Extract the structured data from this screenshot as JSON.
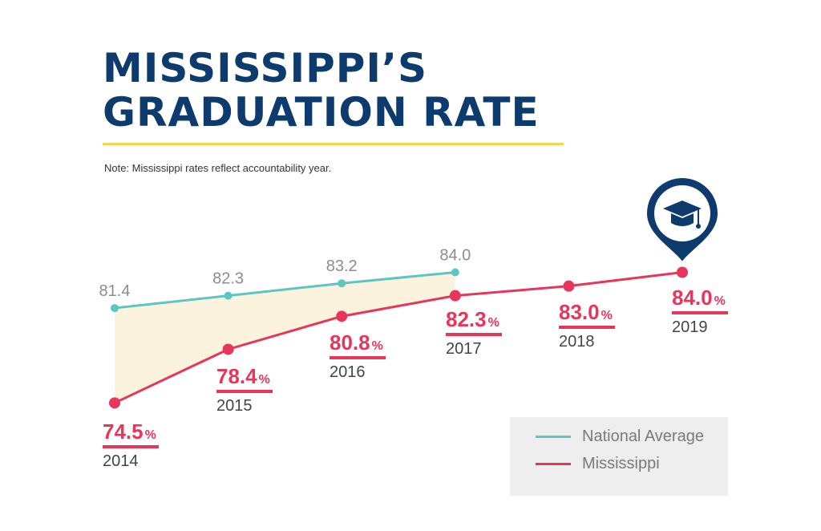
{
  "title_lines": [
    "MISSISSIPPI’S",
    "GRADUATION RATE"
  ],
  "note": "Note: Mississippi rates reflect accountability year.",
  "icon": "graduation-cap-map-pin-icon",
  "colors": {
    "title": "#0d3b6e",
    "rule": "#f4d54b",
    "national": "#5ec6c0",
    "mississippi": "#e8365a",
    "gap_fill": "#fcf3de",
    "national_label": "#8c8c8c",
    "year_label": "#444444",
    "legend_bg": "#eeeeee"
  },
  "legend": {
    "national": "National Average",
    "mississippi": "Mississippi"
  },
  "chart_data": {
    "type": "line",
    "title": "MISSISSIPPI’S GRADUATION RATE",
    "categories": [
      "2014",
      "2015",
      "2016",
      "2017",
      "2018",
      "2019"
    ],
    "series": [
      {
        "name": "National Average",
        "values": [
          81.4,
          82.3,
          83.2,
          84.0,
          null,
          null
        ],
        "labels": [
          "81.4",
          "82.3",
          "83.2",
          "84.0",
          "",
          ""
        ]
      },
      {
        "name": "Mississippi",
        "values": [
          74.5,
          78.4,
          80.8,
          82.3,
          83.0,
          84.0
        ],
        "labels": [
          "74.5",
          "78.4",
          "80.8",
          "82.3",
          "83.0",
          "84.0"
        ],
        "unit": "%"
      }
    ],
    "shaded_gap": "between National Average and Mississippi, 2014–2017",
    "legend_position": "bottom-right",
    "grid": false
  }
}
